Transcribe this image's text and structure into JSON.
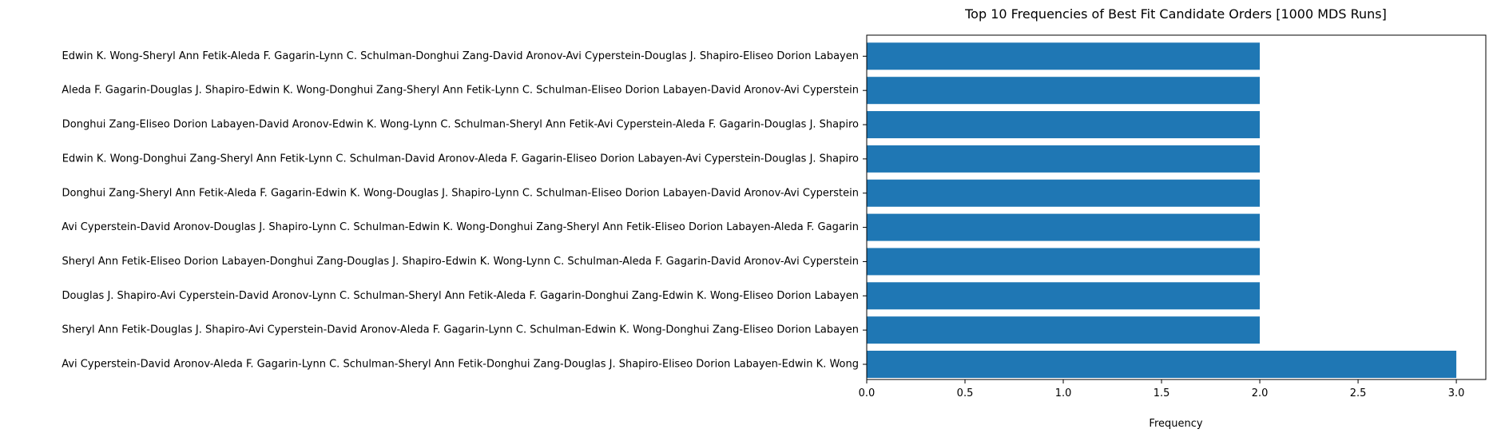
{
  "chart_data": {
    "type": "bar",
    "orientation": "horizontal",
    "title": "Top 10 Frequencies of Best Fit Candidate Orders [1000 MDS Runs]",
    "xlabel": "Frequency",
    "ylabel": "",
    "xlim": [
      0,
      3.15
    ],
    "xticks": [
      "0.0",
      "0.5",
      "1.0",
      "1.5",
      "2.0",
      "2.5",
      "3.0"
    ],
    "bar_color": "#1f77b4",
    "grid": false,
    "categories": [
      "Edwin K. Wong-Sheryl Ann Fetik-Aleda F. Gagarin-Lynn C. Schulman-Donghui Zang-David Aronov-Avi Cyperstein-Douglas J. Shapiro-Eliseo Dorion Labayen",
      "Aleda F. Gagarin-Douglas J. Shapiro-Edwin K. Wong-Donghui Zang-Sheryl Ann Fetik-Lynn C. Schulman-Eliseo Dorion Labayen-David Aronov-Avi Cyperstein",
      "Donghui Zang-Eliseo Dorion Labayen-David Aronov-Edwin K. Wong-Lynn C. Schulman-Sheryl Ann Fetik-Avi Cyperstein-Aleda F. Gagarin-Douglas J. Shapiro",
      "Edwin K. Wong-Donghui Zang-Sheryl Ann Fetik-Lynn C. Schulman-David Aronov-Aleda F. Gagarin-Eliseo Dorion Labayen-Avi Cyperstein-Douglas J. Shapiro",
      "Donghui Zang-Sheryl Ann Fetik-Aleda F. Gagarin-Edwin K. Wong-Douglas J. Shapiro-Lynn C. Schulman-Eliseo Dorion Labayen-David Aronov-Avi Cyperstein",
      "Avi Cyperstein-David Aronov-Douglas J. Shapiro-Lynn C. Schulman-Edwin K. Wong-Donghui Zang-Sheryl Ann Fetik-Eliseo Dorion Labayen-Aleda F. Gagarin",
      "Sheryl Ann Fetik-Eliseo Dorion Labayen-Donghui Zang-Douglas J. Shapiro-Edwin K. Wong-Lynn C. Schulman-Aleda F. Gagarin-David Aronov-Avi Cyperstein",
      "Douglas J. Shapiro-Avi Cyperstein-David Aronov-Lynn C. Schulman-Sheryl Ann Fetik-Aleda F. Gagarin-Donghui Zang-Edwin K. Wong-Eliseo Dorion Labayen",
      "Sheryl Ann Fetik-Douglas J. Shapiro-Avi Cyperstein-David Aronov-Aleda F. Gagarin-Lynn C. Schulman-Edwin K. Wong-Donghui Zang-Eliseo Dorion Labayen",
      "Avi Cyperstein-David Aronov-Aleda F. Gagarin-Lynn C. Schulman-Sheryl Ann Fetik-Donghui Zang-Douglas J. Shapiro-Eliseo Dorion Labayen-Edwin K. Wong"
    ],
    "values": [
      2,
      2,
      2,
      2,
      2,
      2,
      2,
      2,
      2,
      3
    ]
  }
}
